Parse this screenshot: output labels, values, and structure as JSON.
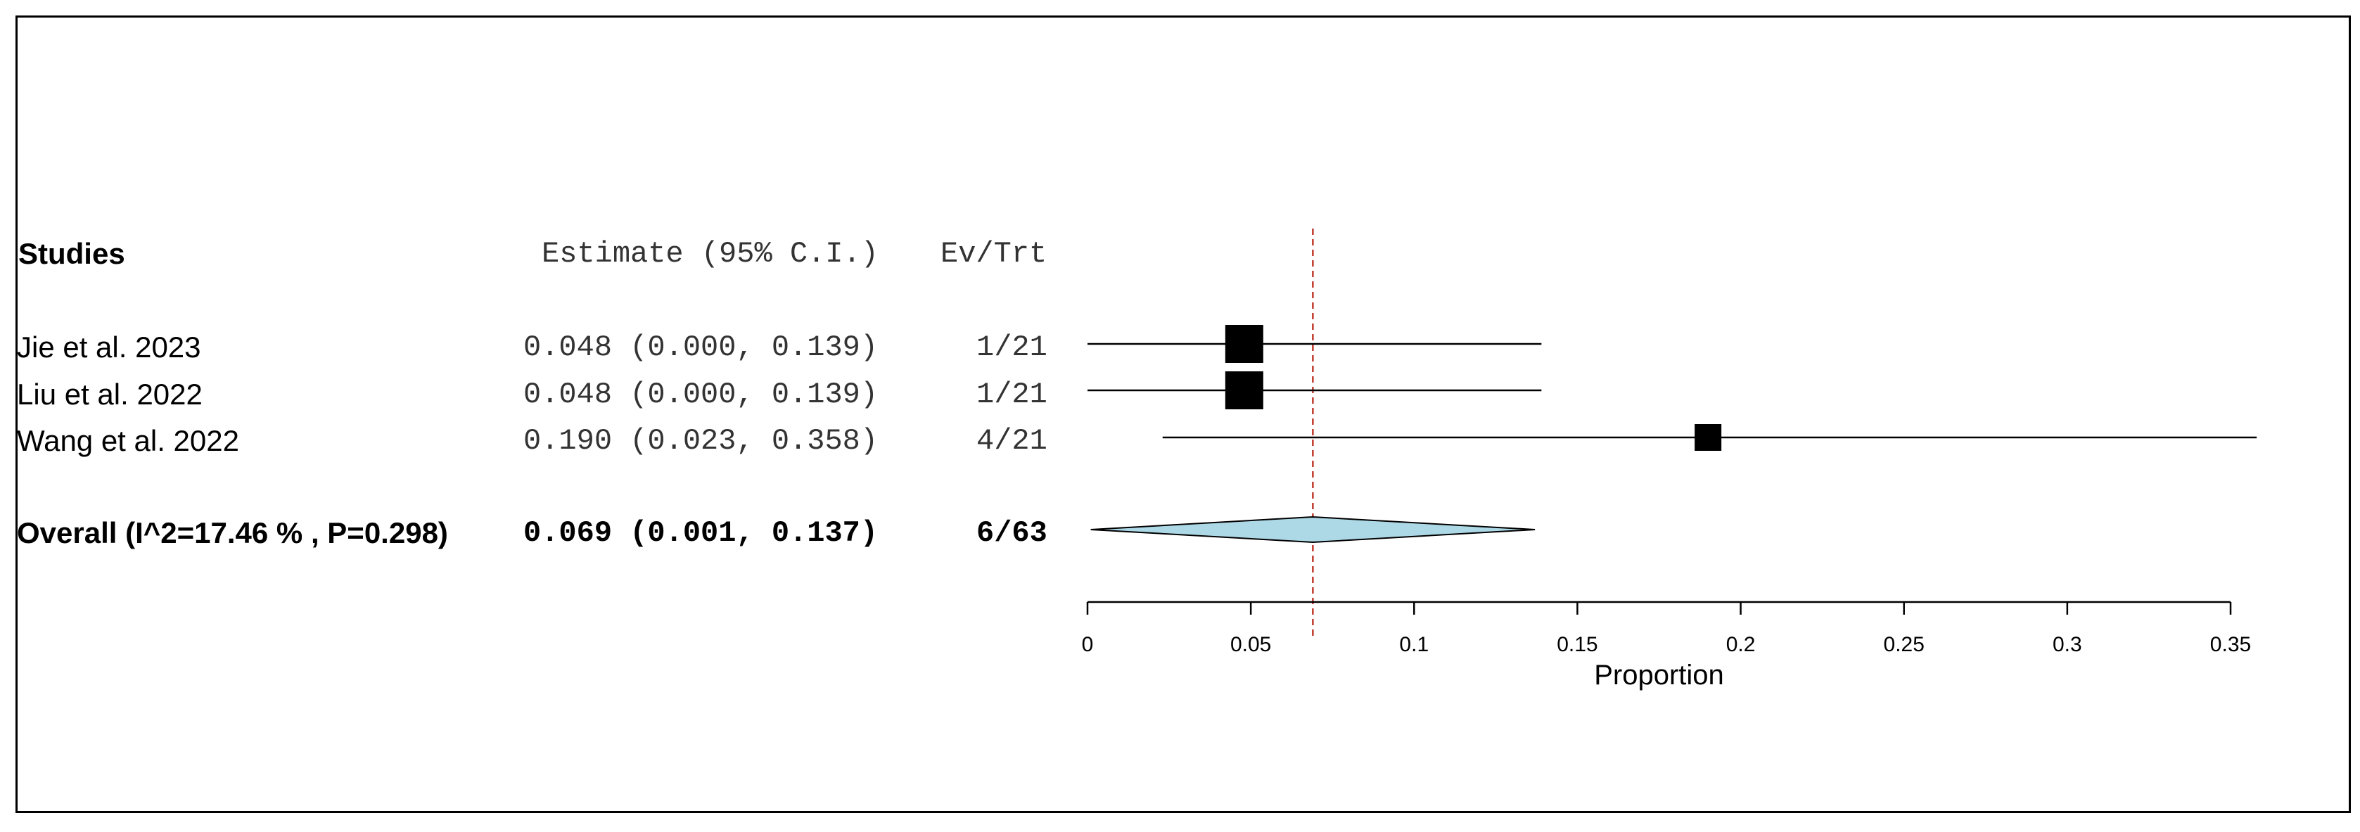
{
  "chart_data": {
    "type": "forest",
    "headers": {
      "studies": "Studies",
      "estimate": "Estimate (95% C.I.)",
      "events": "Ev/Trt"
    },
    "studies": [
      {
        "name": "Jie et al. 2023",
        "estimate": 0.048,
        "lower": 0.0,
        "upper": 0.139,
        "estimate_text": "0.048 (0.000, 0.139)",
        "events_text": "1/21",
        "weight_marker": "large"
      },
      {
        "name": "Liu et al. 2022",
        "estimate": 0.048,
        "lower": 0.0,
        "upper": 0.139,
        "estimate_text": "0.048 (0.000, 0.139)",
        "events_text": "1/21",
        "weight_marker": "large"
      },
      {
        "name": "Wang et al. 2022",
        "estimate": 0.19,
        "lower": 0.023,
        "upper": 0.358,
        "estimate_text": "0.190 (0.023, 0.358)",
        "events_text": "4/21",
        "weight_marker": "small"
      }
    ],
    "overall": {
      "name": "Overall (I^2=17.46 % , P=0.298)",
      "estimate": 0.069,
      "lower": 0.001,
      "upper": 0.137,
      "estimate_text": "0.069 (0.001, 0.137)",
      "events_text": "6/63"
    },
    "x_axis": {
      "label": "Proportion",
      "ticks": [
        0,
        0.05,
        0.1,
        0.15,
        0.2,
        0.25,
        0.3,
        0.35
      ],
      "tick_labels": [
        "0",
        "0.05",
        "0.1",
        "0.15",
        "0.2",
        "0.25",
        "0.3",
        "0.35"
      ],
      "range": [
        0,
        0.358
      ]
    },
    "reference_line": 0.069,
    "colors": {
      "diamond_fill": "#add8e6",
      "reference_line": "#c0392b",
      "marker": "#000000"
    }
  }
}
